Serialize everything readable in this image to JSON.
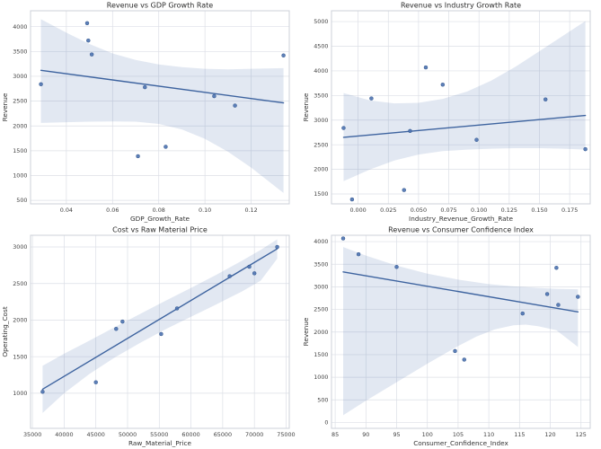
{
  "figure": {
    "background": "#ffffff",
    "accent_color": "#4c72b0",
    "point_color": "#4c72b0",
    "point_edge_color": "#35598f",
    "line_color": "#3d639f",
    "band_color": "rgba(76,114,176,0.16)",
    "grid_color": "#dcdfe6",
    "spine_color": "#ccd0d8"
  },
  "chart_data": [
    {
      "type": "scatter",
      "title": "Revenue vs GDP Growth Rate",
      "xlabel": "GDP_Growth_Rate",
      "ylabel": "Revenue",
      "xlim": [
        0.0245,
        0.1365
      ],
      "ylim": [
        430,
        4320
      ],
      "grid": true,
      "legend": "none",
      "xticks": {
        "values": [
          0.04,
          0.06,
          0.08,
          0.1,
          0.12
        ],
        "labels": [
          "0.04",
          "0.06",
          "0.08",
          "0.10",
          "0.12"
        ]
      },
      "yticks": {
        "values": [
          500,
          1000,
          1500,
          2000,
          2500,
          3000,
          3500,
          4000
        ],
        "labels": [
          "500",
          "1000",
          "1500",
          "2000",
          "2500",
          "3000",
          "3500",
          "4000"
        ]
      },
      "points": [
        [
          0.029,
          2840
        ],
        [
          0.049,
          4070
        ],
        [
          0.0495,
          3720
        ],
        [
          0.051,
          3440
        ],
        [
          0.071,
          1390
        ],
        [
          0.074,
          2780
        ],
        [
          0.083,
          1580
        ],
        [
          0.104,
          2600
        ],
        [
          0.113,
          2410
        ],
        [
          0.134,
          3420
        ]
      ],
      "regression_line": [
        [
          0.029,
          3120
        ],
        [
          0.134,
          2465
        ]
      ],
      "confidence_band": {
        "upper": [
          [
            0.029,
            4150
          ],
          [
            0.04,
            3880
          ],
          [
            0.05,
            3650
          ],
          [
            0.06,
            3460
          ],
          [
            0.07,
            3330
          ],
          [
            0.08,
            3240
          ],
          [
            0.09,
            3185
          ],
          [
            0.1,
            3150
          ],
          [
            0.11,
            3140
          ],
          [
            0.12,
            3150
          ],
          [
            0.134,
            3165
          ]
        ],
        "lower": [
          [
            0.029,
            2060
          ],
          [
            0.04,
            2075
          ],
          [
            0.05,
            2085
          ],
          [
            0.06,
            2090
          ],
          [
            0.07,
            2085
          ],
          [
            0.08,
            2040
          ],
          [
            0.09,
            1930
          ],
          [
            0.1,
            1740
          ],
          [
            0.11,
            1480
          ],
          [
            0.12,
            1160
          ],
          [
            0.134,
            650
          ]
        ]
      }
    },
    {
      "type": "scatter",
      "title": "Revenue vs Industry Growth Rate",
      "xlabel": "Industry_Revenue_Growth_Rate",
      "ylabel": "Revenue",
      "xlim": [
        -0.022,
        0.192
      ],
      "ylim": [
        1300,
        5220
      ],
      "grid": true,
      "legend": "none",
      "xticks": {
        "values": [
          0.0,
          0.025,
          0.05,
          0.075,
          0.1,
          0.125,
          0.15,
          0.175
        ],
        "labels": [
          "0.000",
          "0.025",
          "0.050",
          "0.075",
          "0.100",
          "0.125",
          "0.150",
          "0.175"
        ]
      },
      "yticks": {
        "values": [
          1500,
          2000,
          2500,
          3000,
          3500,
          4000,
          4500,
          5000
        ],
        "labels": [
          "1500",
          "2000",
          "2500",
          "3000",
          "3500",
          "4000",
          "4500",
          "5000"
        ]
      },
      "points": [
        [
          -0.012,
          2840
        ],
        [
          -0.005,
          1390
        ],
        [
          0.011,
          3440
        ],
        [
          0.038,
          1580
        ],
        [
          0.043,
          2780
        ],
        [
          0.056,
          4070
        ],
        [
          0.07,
          3720
        ],
        [
          0.098,
          2600
        ],
        [
          0.155,
          3420
        ],
        [
          0.188,
          2410
        ]
      ],
      "regression_line": [
        [
          -0.012,
          2650
        ],
        [
          0.188,
          3095
        ]
      ],
      "confidence_band": {
        "upper": [
          [
            -0.012,
            3550
          ],
          [
            0.01,
            3400
          ],
          [
            0.03,
            3340
          ],
          [
            0.05,
            3350
          ],
          [
            0.07,
            3430
          ],
          [
            0.09,
            3580
          ],
          [
            0.11,
            3800
          ],
          [
            0.13,
            4080
          ],
          [
            0.15,
            4400
          ],
          [
            0.17,
            4720
          ],
          [
            0.188,
            5010
          ]
        ],
        "lower": [
          [
            -0.012,
            1760
          ],
          [
            0.01,
            2000
          ],
          [
            0.03,
            2180
          ],
          [
            0.05,
            2300
          ],
          [
            0.07,
            2370
          ],
          [
            0.09,
            2400
          ],
          [
            0.11,
            2420
          ],
          [
            0.13,
            2430
          ],
          [
            0.15,
            2430
          ],
          [
            0.17,
            2420
          ],
          [
            0.188,
            2400
          ]
        ]
      }
    },
    {
      "type": "scatter",
      "title": "Cost vs Raw Material Price",
      "xlabel": "Raw_Material_Price",
      "ylabel": "Operating_Cost",
      "xlim": [
        34700,
        75500
      ],
      "ylim": [
        520,
        3160
      ],
      "grid": true,
      "legend": "none",
      "xticks": {
        "values": [
          35000,
          40000,
          45000,
          50000,
          55000,
          60000,
          65000,
          70000,
          75000
        ],
        "labels": [
          "35000",
          "40000",
          "45000",
          "50000",
          "55000",
          "60000",
          "65000",
          "70000",
          "75000"
        ]
      },
      "yticks": {
        "values": [
          1000,
          1500,
          2000,
          2500,
          3000
        ],
        "labels": [
          "1000",
          "1500",
          "2000",
          "2500",
          "3000"
        ]
      },
      "points": [
        [
          36600,
          1020
        ],
        [
          45000,
          1150
        ],
        [
          48200,
          1880
        ],
        [
          49200,
          1980
        ],
        [
          55300,
          1810
        ],
        [
          57800,
          2160
        ],
        [
          66100,
          2600
        ],
        [
          69200,
          2730
        ],
        [
          70000,
          2640
        ],
        [
          73600,
          3000
        ]
      ],
      "regression_line": [
        [
          36600,
          1055
        ],
        [
          73600,
          2975
        ]
      ],
      "confidence_band": {
        "upper": [
          [
            36600,
            1375
          ],
          [
            40000,
            1540
          ],
          [
            44000,
            1720
          ],
          [
            48000,
            1905
          ],
          [
            52000,
            2085
          ],
          [
            56000,
            2265
          ],
          [
            60000,
            2440
          ],
          [
            64000,
            2620
          ],
          [
            68000,
            2810
          ],
          [
            71000,
            2960
          ],
          [
            73600,
            3105
          ]
        ],
        "lower": [
          [
            36600,
            730
          ],
          [
            40000,
            1000
          ],
          [
            44000,
            1265
          ],
          [
            48000,
            1490
          ],
          [
            52000,
            1690
          ],
          [
            56000,
            1875
          ],
          [
            60000,
            2045
          ],
          [
            64000,
            2215
          ],
          [
            68000,
            2390
          ],
          [
            71000,
            2540
          ],
          [
            73600,
            2840
          ]
        ]
      }
    },
    {
      "type": "scatter",
      "title": "Revenue vs Consumer Confidence Index",
      "xlabel": "Consumer_Confidence_Index",
      "ylabel": "Revenue",
      "xlim": [
        84.4,
        126.5
      ],
      "ylim": [
        -130,
        4140
      ],
      "grid": true,
      "legend": "none",
      "xticks": {
        "values": [
          85,
          90,
          95,
          100,
          105,
          110,
          115,
          120,
          125
        ],
        "labels": [
          "85",
          "90",
          "95",
          "100",
          "105",
          "110",
          "115",
          "120",
          "125"
        ]
      },
      "yticks": {
        "values": [
          0,
          500,
          1000,
          1500,
          2000,
          2500,
          3000,
          3500,
          4000
        ],
        "labels": [
          "0",
          "500",
          "1000",
          "1500",
          "2000",
          "2500",
          "3000",
          "3500",
          "4000"
        ]
      },
      "points": [
        [
          86.3,
          4070
        ],
        [
          88.8,
          3720
        ],
        [
          95.0,
          3440
        ],
        [
          104.5,
          1580
        ],
        [
          106.0,
          1390
        ],
        [
          115.5,
          2410
        ],
        [
          119.5,
          2840
        ],
        [
          121.0,
          3420
        ],
        [
          121.3,
          2600
        ],
        [
          124.5,
          2780
        ]
      ],
      "regression_line": [
        [
          86.3,
          3330
        ],
        [
          124.5,
          2445
        ]
      ],
      "confidence_band": {
        "upper": [
          [
            86.3,
            3880
          ],
          [
            90,
            3690
          ],
          [
            95,
            3470
          ],
          [
            100,
            3290
          ],
          [
            105,
            3160
          ],
          [
            110,
            3060
          ],
          [
            114,
            3010
          ],
          [
            118,
            2975
          ],
          [
            121,
            2955
          ],
          [
            124.5,
            2945
          ]
        ],
        "lower": [
          [
            86.3,
            160
          ],
          [
            90,
            480
          ],
          [
            95,
            890
          ],
          [
            100,
            1300
          ],
          [
            105,
            1690
          ],
          [
            108,
            1900
          ],
          [
            111,
            2060
          ],
          [
            114,
            2150
          ],
          [
            116,
            2165
          ],
          [
            118,
            2130
          ],
          [
            121,
            2040
          ],
          [
            124.5,
            1670
          ]
        ]
      }
    }
  ]
}
